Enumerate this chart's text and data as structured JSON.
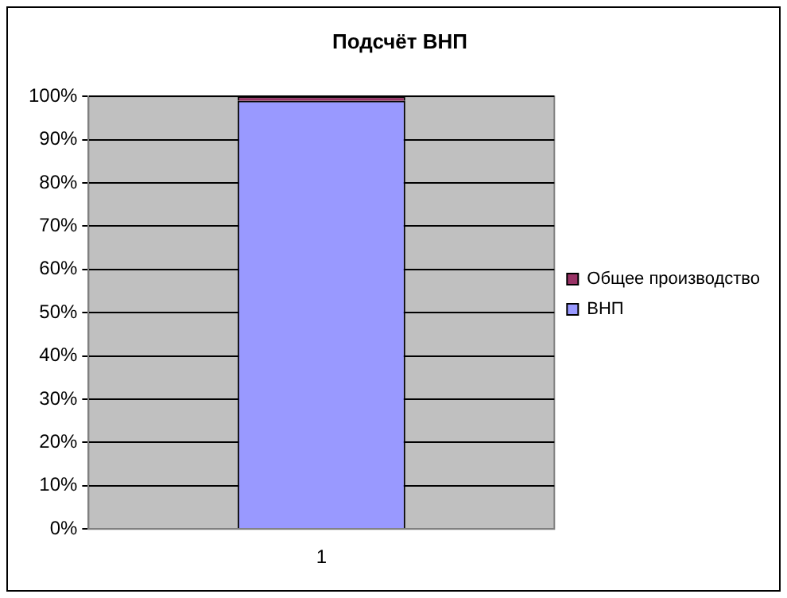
{
  "chart_data": {
    "type": "bar",
    "title": "Подсчёт ВНП",
    "categories": [
      "1"
    ],
    "stacked": true,
    "series": [
      {
        "name": "ВНП",
        "color": "#9999ff",
        "values": [
          99
        ]
      },
      {
        "name": "Общее производство",
        "color": "#993366",
        "values": [
          1
        ]
      }
    ],
    "ylim": [
      0,
      100
    ],
    "yticks": [
      {
        "value": 0,
        "label": "0%"
      },
      {
        "value": 10,
        "label": "10%"
      },
      {
        "value": 20,
        "label": "20%"
      },
      {
        "value": 30,
        "label": "30%"
      },
      {
        "value": 40,
        "label": "40%"
      },
      {
        "value": 50,
        "label": "50%"
      },
      {
        "value": 60,
        "label": "60%"
      },
      {
        "value": 70,
        "label": "70%"
      },
      {
        "value": 80,
        "label": "80%"
      },
      {
        "value": 90,
        "label": "90%"
      },
      {
        "value": 100,
        "label": "100%"
      }
    ],
    "grid": "y",
    "legend": "right"
  }
}
